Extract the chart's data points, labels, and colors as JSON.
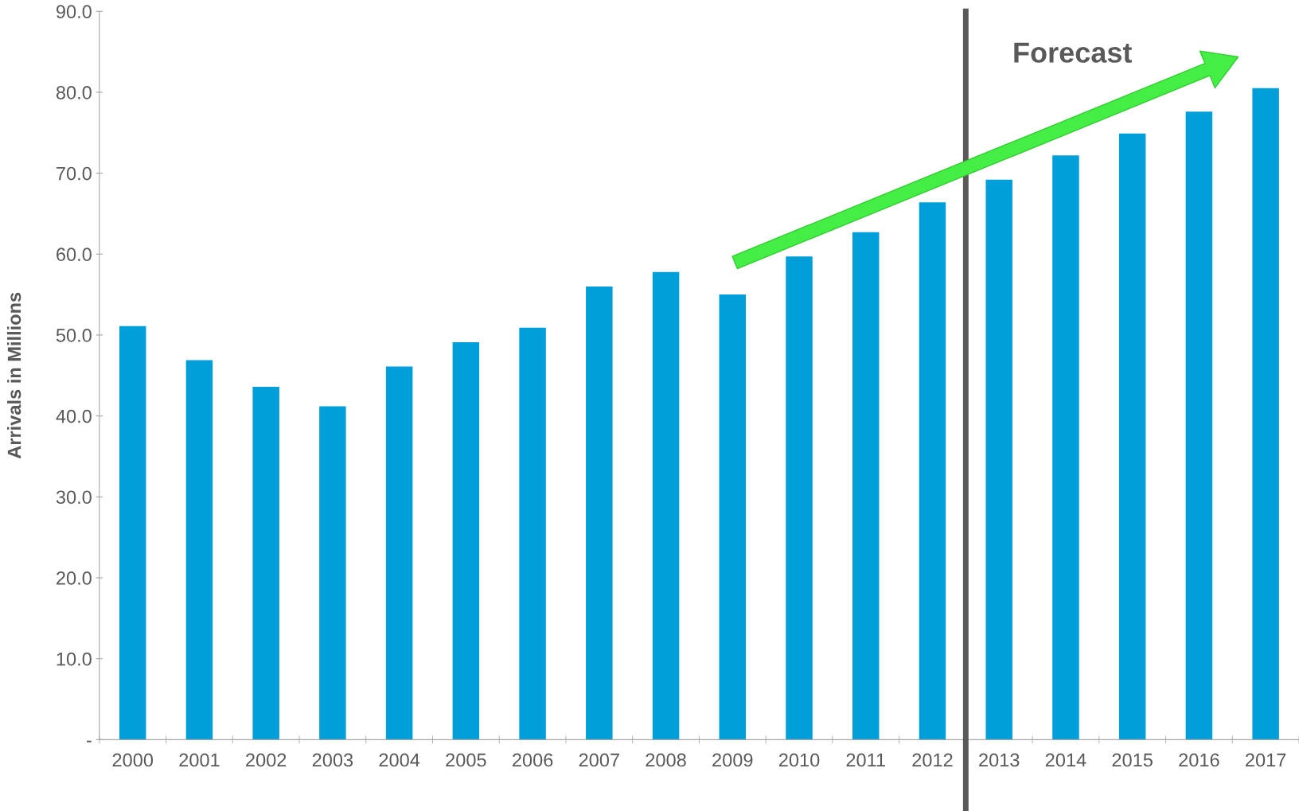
{
  "chart_data": {
    "type": "bar",
    "ylabel": "Arrivals in Millions",
    "categories": [
      "2000",
      "2001",
      "2002",
      "2003",
      "2004",
      "2005",
      "2006",
      "2007",
      "2008",
      "2009",
      "2010",
      "2011",
      "2012",
      "2013",
      "2014",
      "2015",
      "2016",
      "2017"
    ],
    "values": [
      51.1,
      46.9,
      43.6,
      41.2,
      46.1,
      49.1,
      50.9,
      56.0,
      57.8,
      55.0,
      59.7,
      62.7,
      66.4,
      69.2,
      72.2,
      74.9,
      77.6,
      80.5
    ],
    "color": "#009fda",
    "ylim": [
      0,
      90
    ],
    "yticks": [
      {
        "value": 0,
        "label": "-"
      },
      {
        "value": 10,
        "label": "10.0"
      },
      {
        "value": 20,
        "label": "20.0"
      },
      {
        "value": 30,
        "label": "30.0"
      },
      {
        "value": 40,
        "label": "40.0"
      },
      {
        "value": 50,
        "label": "50.0"
      },
      {
        "value": 60,
        "label": "60.0"
      },
      {
        "value": 70,
        "label": "70.0"
      },
      {
        "value": 80,
        "label": "80.0"
      },
      {
        "value": 90,
        "label": "90.0"
      }
    ],
    "annotations": [
      "Forecast"
    ],
    "grid": false,
    "legend": false
  }
}
